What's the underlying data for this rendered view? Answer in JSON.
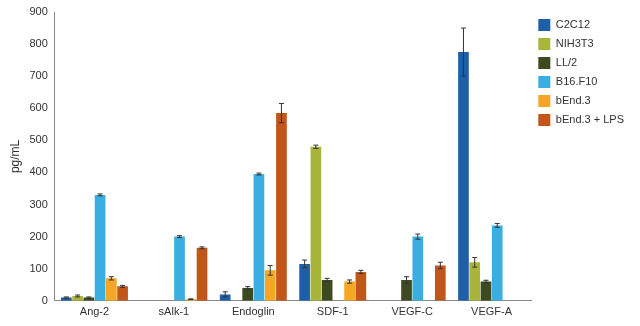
{
  "chart_data": {
    "type": "bar",
    "y_label": "pg/mL",
    "categories": [
      "Ang-2",
      "sAlk-1",
      "Endoglin",
      "SDF-1",
      "VEGF-C",
      "VEGF-A"
    ],
    "series": [
      {
        "name": "C2C12",
        "color": "#1f5fa8",
        "values": [
          10,
          0,
          20,
          115,
          0,
          775
        ],
        "errors": [
          2,
          0,
          8,
          12,
          0,
          75
        ]
      },
      {
        "name": "NIH3T3",
        "color": "#a9b43a",
        "values": [
          15,
          0,
          0,
          480,
          0,
          120
        ],
        "errors": [
          3,
          0,
          0,
          5,
          0,
          15
        ]
      },
      {
        "name": "LL/2",
        "color": "#3d4a1f",
        "values": [
          10,
          0,
          40,
          65,
          65,
          60
        ],
        "errors": [
          2,
          0,
          4,
          5,
          10,
          4
        ]
      },
      {
        "name": "B16.F10",
        "color": "#3aaee0",
        "values": [
          330,
          200,
          395,
          0,
          200,
          235
        ],
        "errors": [
          3,
          3,
          3,
          0,
          8,
          6
        ]
      },
      {
        "name": "bEnd.3",
        "color": "#f5a623",
        "values": [
          70,
          5,
          95,
          60,
          0,
          0
        ],
        "errors": [
          5,
          1,
          15,
          5,
          0,
          0
        ]
      },
      {
        "name": "bEnd.3 + LPS",
        "color": "#c0561a",
        "values": [
          45,
          165,
          585,
          90,
          110,
          0
        ],
        "errors": [
          3,
          3,
          30,
          5,
          10,
          0
        ]
      }
    ],
    "ylim": [
      0,
      900
    ],
    "yticks": [
      0,
      100,
      200,
      300,
      400,
      500,
      600,
      700,
      800,
      900
    ],
    "grid": false,
    "legend": "upper right"
  }
}
